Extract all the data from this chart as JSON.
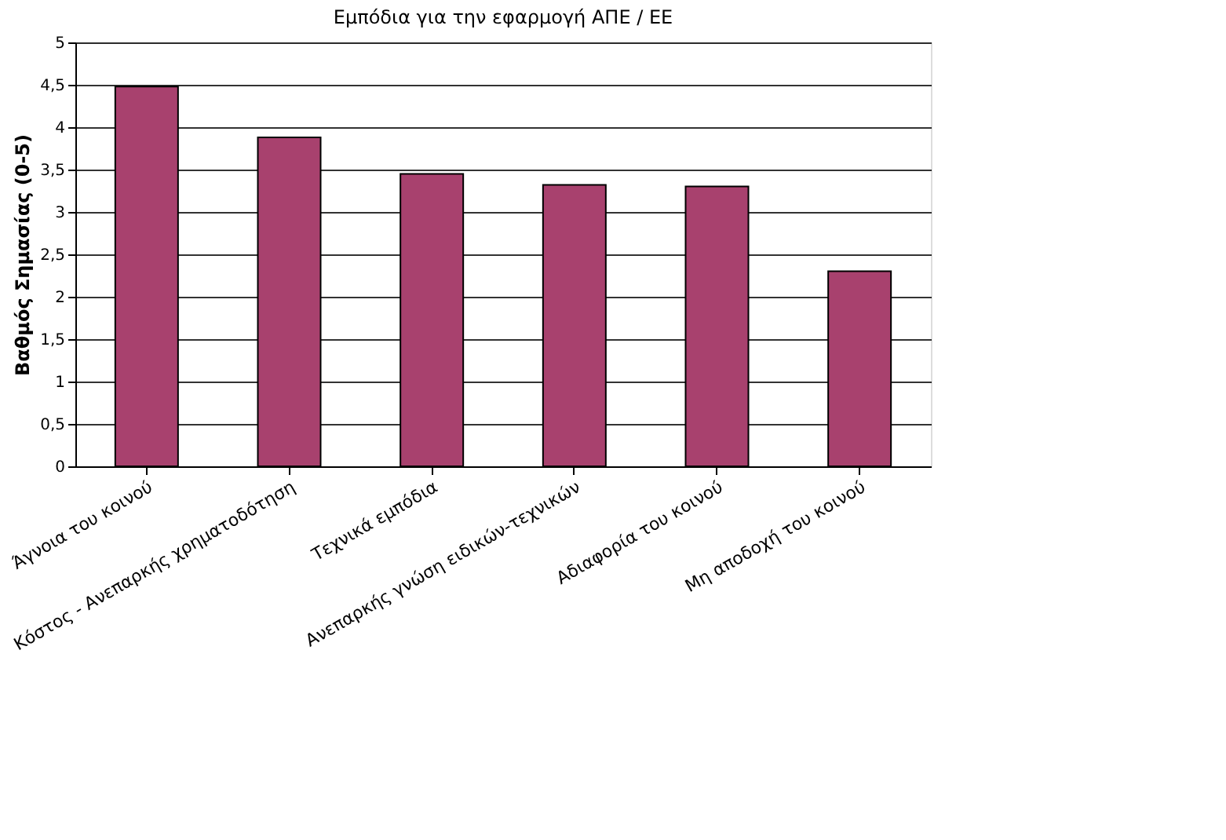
{
  "chart_data": {
    "type": "bar",
    "title": "Εμπόδια για την εφαρμογή ΑΠΕ / ΕΕ",
    "ylabel": "Βαθμός Σημασίας (0-5)",
    "categories": [
      "Άγνοια του κοινού",
      "Κόστος - Ανεπαρκής χρηματοδότηση",
      "Τεχνικά εμπόδια",
      "Ανεπαρκής γνώση ειδικών-τεχνικών",
      "Αδιαφορία του κοινού",
      "Μη αποδοχή του κοινού"
    ],
    "values": [
      4.48,
      3.88,
      3.45,
      3.32,
      3.3,
      2.3
    ],
    "color": "#a8416e",
    "ylim": [
      0,
      5
    ],
    "yticks": [
      0,
      {
        "value": 0.5,
        "label": "0,5"
      },
      1,
      {
        "value": 1.5,
        "label": "1,5"
      },
      2,
      {
        "value": 2.5,
        "label": "2,5"
      },
      3,
      {
        "value": 3.5,
        "label": "3,5"
      },
      4,
      {
        "value": 4.5,
        "label": "4,5"
      },
      5
    ],
    "grid": "y"
  }
}
